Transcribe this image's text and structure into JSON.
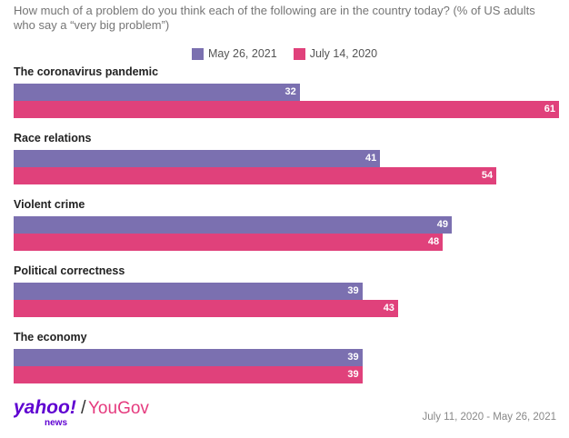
{
  "chart_data": {
    "type": "bar",
    "orientation": "horizontal",
    "title": "How much of a problem do you think each of the following are in the country today? (% of US adults who say a “very big problem”)",
    "categories": [
      "The coronavirus pandemic",
      "Race relations",
      "Violent crime",
      "Political correctness",
      "The economy"
    ],
    "series": [
      {
        "name": "May 26, 2021",
        "color": "#7b70b0",
        "values": [
          32,
          41,
          49,
          39,
          39
        ]
      },
      {
        "name": "July 14, 2020",
        "color": "#e0417b",
        "values": [
          61,
          54,
          48,
          43,
          39
        ]
      }
    ],
    "xlim": [
      0,
      61
    ],
    "grid": false,
    "legend": "top-center"
  },
  "footer": {
    "date_range": "July 11, 2020 - May 26, 2021",
    "logo_yahoo": "yahoo",
    "logo_bang": "!",
    "logo_news": "news",
    "logo_slash": "/",
    "logo_yougov": "YouGov"
  }
}
